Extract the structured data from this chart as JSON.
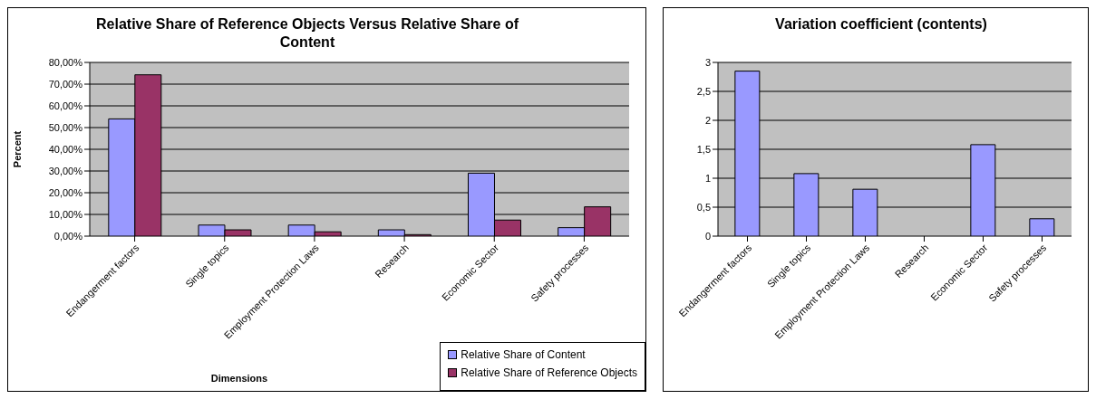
{
  "chart_data": [
    {
      "type": "bar",
      "title": "Relative Share of Reference Objects Versus Relative Share of Content",
      "xlabel": "Dimensions",
      "ylabel": "Percent",
      "categories": [
        "Endangerment factors",
        "Single topics",
        "Employment Protection Laws",
        "Research",
        "Economic Sector",
        "Safety processes"
      ],
      "series": [
        {
          "name": "Relative Share of Content",
          "color": "#9999ff",
          "values": [
            54,
            5.1,
            5.1,
            2.9,
            29,
            3.9
          ]
        },
        {
          "name": "Relative Share of Reference Objects",
          "color": "#993366",
          "values": [
            74.3,
            2.9,
            2,
            0.7,
            7.4,
            13.5
          ]
        }
      ],
      "ylim": [
        0,
        80
      ],
      "yticks": [
        {
          "value": 0,
          "label": "0,00%"
        },
        {
          "value": 10,
          "label": "10,00%"
        },
        {
          "value": 20,
          "label": "20,00%"
        },
        {
          "value": 30,
          "label": "30,00%"
        },
        {
          "value": 40,
          "label": "40,00%"
        },
        {
          "value": 50,
          "label": "50,00%"
        },
        {
          "value": 60,
          "label": "60,00%"
        },
        {
          "value": 70,
          "label": "70,00%"
        },
        {
          "value": 80,
          "label": "80,00%"
        }
      ],
      "grid": "y",
      "legend": "bottom right"
    },
    {
      "type": "bar",
      "title": "Variation coefficient (contents)",
      "categories": [
        "Endangerment factors",
        "Single topics",
        "Employment Protection Laws",
        "Research",
        "Economic Sector",
        "Safety processes"
      ],
      "series": [
        {
          "color": "#9999ff",
          "values": [
            2.85,
            1.08,
            0.81,
            0,
            1.58,
            0.3
          ]
        }
      ],
      "ylim": [
        0,
        3
      ],
      "yticks": [
        0,
        {
          "value": 0.5,
          "label": "0,5"
        },
        1,
        {
          "value": 1.5,
          "label": "1,5"
        },
        2,
        {
          "value": 2.5,
          "label": "2,5"
        },
        3
      ],
      "grid": "y"
    }
  ]
}
